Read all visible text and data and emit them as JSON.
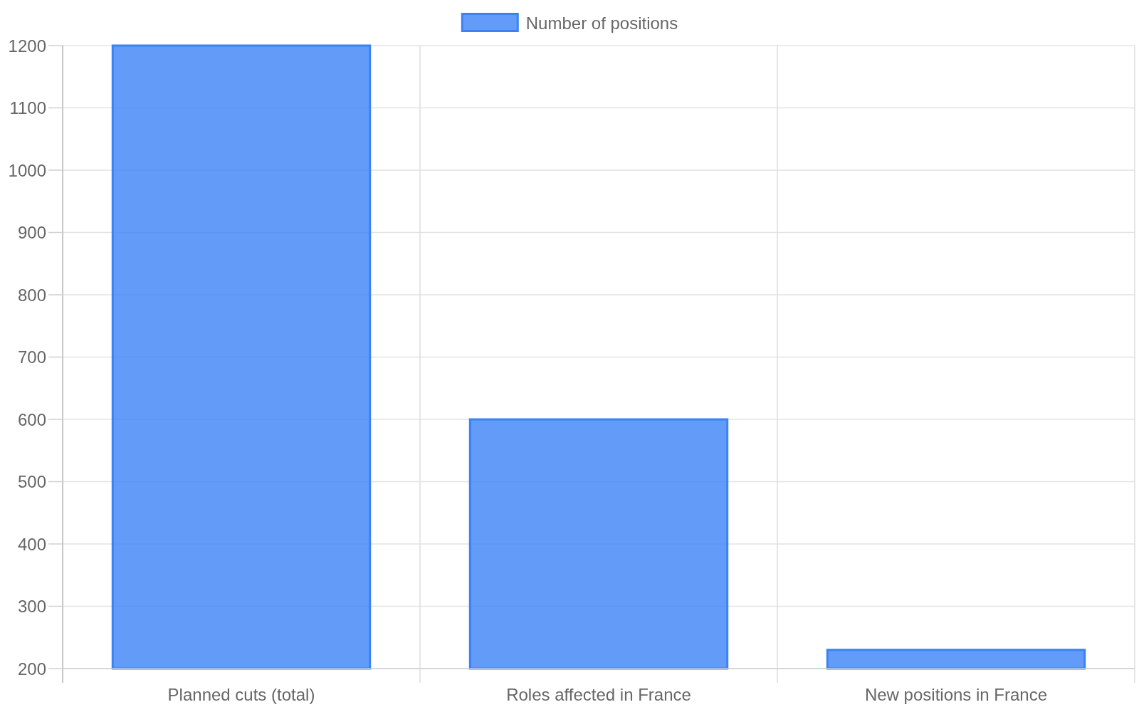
{
  "chart_data": {
    "type": "bar",
    "categories": [
      "Planned cuts (total)",
      "Roles affected in France",
      "New positions in France"
    ],
    "series": [
      {
        "name": "Number of positions",
        "color": "#3b82f6",
        "values": [
          1200,
          600,
          230
        ]
      }
    ],
    "ylim": [
      200,
      1200
    ],
    "yticks": [
      200,
      300,
      400,
      500,
      600,
      700,
      800,
      900,
      1000,
      1100,
      1200
    ],
    "grid": true,
    "legend": "top"
  }
}
